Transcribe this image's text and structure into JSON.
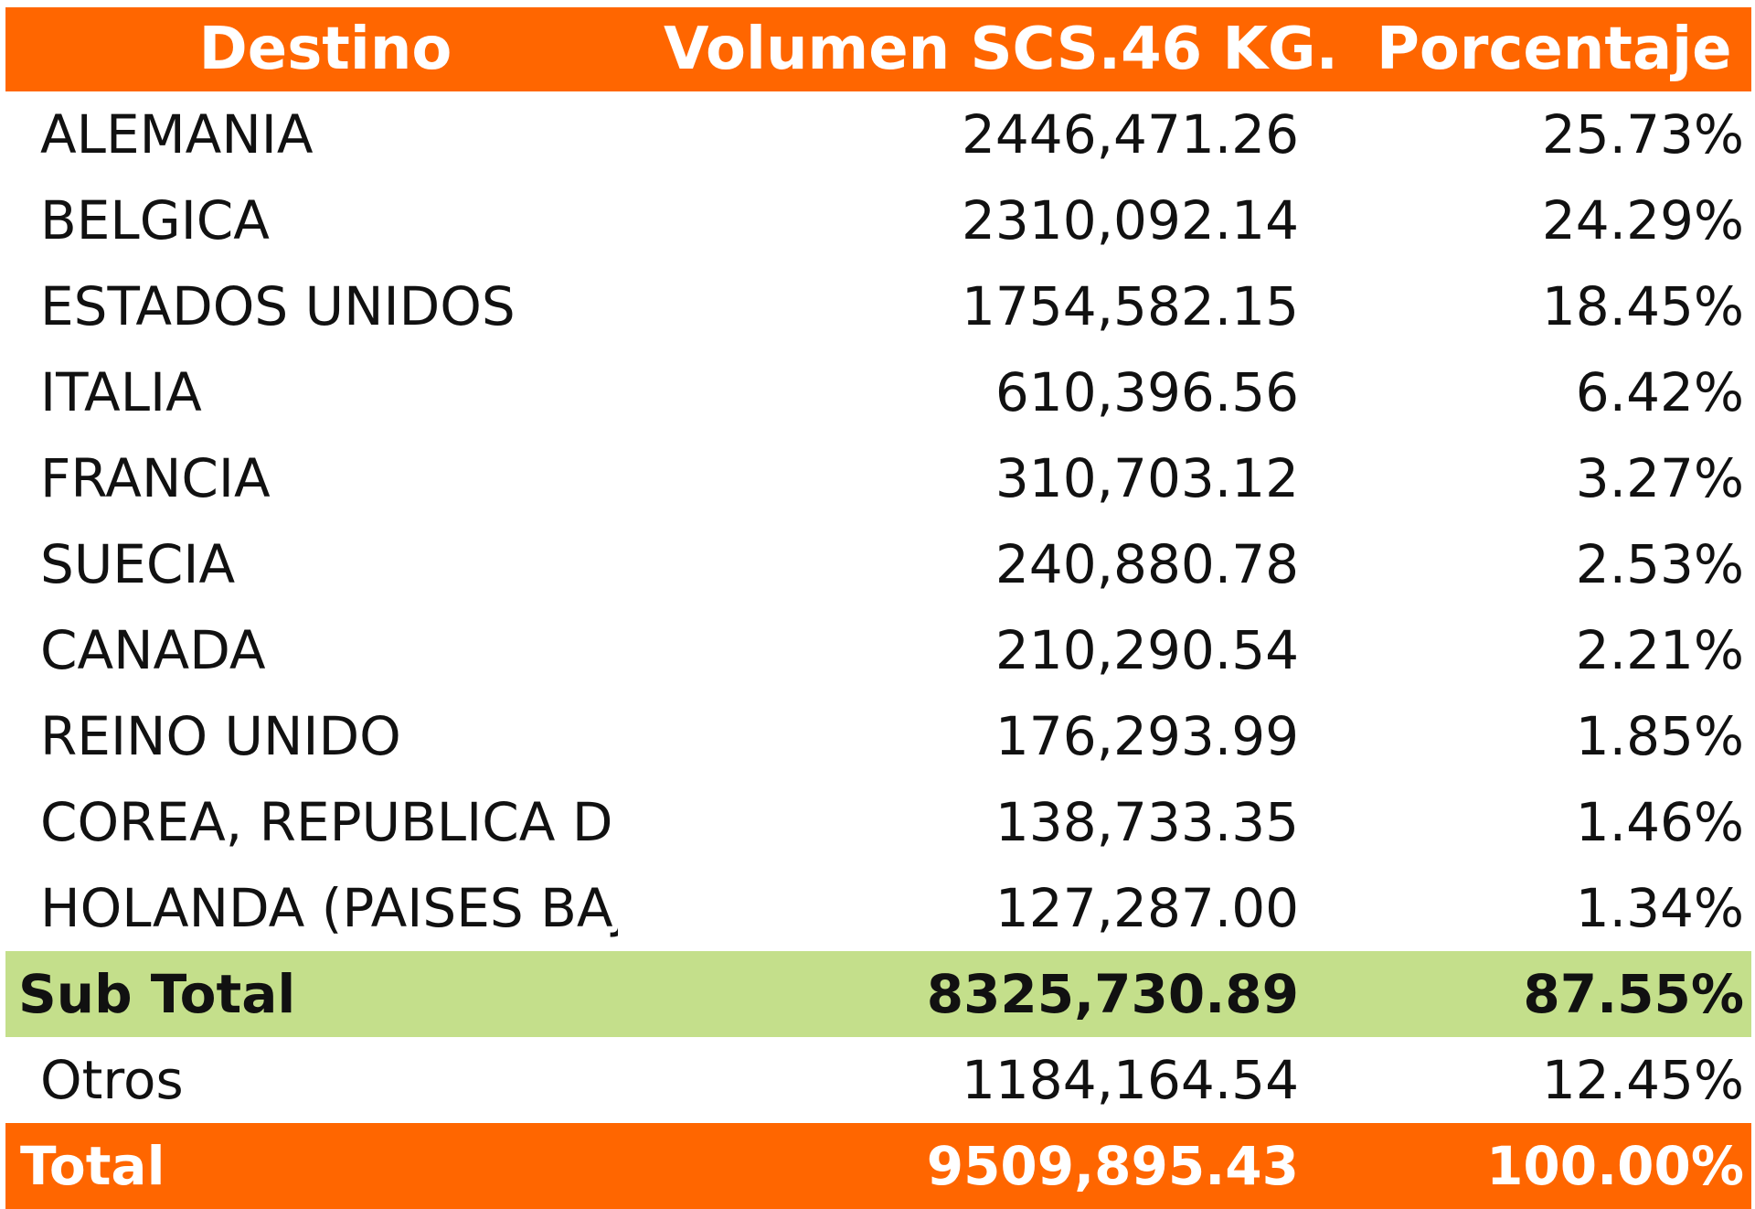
{
  "table": {
    "headers": {
      "destino": "Destino",
      "volumen": "Volumen SCS.46 KG.",
      "porcentaje": "Porcentaje"
    },
    "rows": [
      {
        "destino": "ALEMANIA",
        "volumen": "2446,471.26",
        "porcentaje": "25.73%"
      },
      {
        "destino": "BELGICA",
        "volumen": "2310,092.14",
        "porcentaje": "24.29%"
      },
      {
        "destino": "ESTADOS UNIDOS",
        "volumen": "1754,582.15",
        "porcentaje": "18.45%"
      },
      {
        "destino": "ITALIA",
        "volumen": "610,396.56",
        "porcentaje": "6.42%"
      },
      {
        "destino": "FRANCIA",
        "volumen": "310,703.12",
        "porcentaje": "3.27%"
      },
      {
        "destino": "SUECIA",
        "volumen": "240,880.78",
        "porcentaje": "2.53%"
      },
      {
        "destino": "CANADA",
        "volumen": "210,290.54",
        "porcentaje": "2.21%"
      },
      {
        "destino": "REINO UNIDO",
        "volumen": "176,293.99",
        "porcentaje": "1.85%"
      },
      {
        "destino": "COREA, REPUBLICA DE",
        "volumen": "138,733.35",
        "porcentaje": "1.46%"
      },
      {
        "destino": "HOLANDA (PAISES BAJ",
        "volumen": "127,287.00",
        "porcentaje": "1.34%"
      }
    ],
    "subtotal": {
      "destino": "Sub Total",
      "volumen": "8325,730.89",
      "porcentaje": "87.55%"
    },
    "otros": {
      "destino": "Otros",
      "volumen": "1184,164.54",
      "porcentaje": "12.45%"
    },
    "total": {
      "destino": "Total",
      "volumen": "9509,895.43",
      "porcentaje": "100.00%"
    }
  },
  "colors": {
    "header_bg": "#ff6600",
    "subtotal_bg": "#c4df8b",
    "total_bg": "#ff6600"
  }
}
